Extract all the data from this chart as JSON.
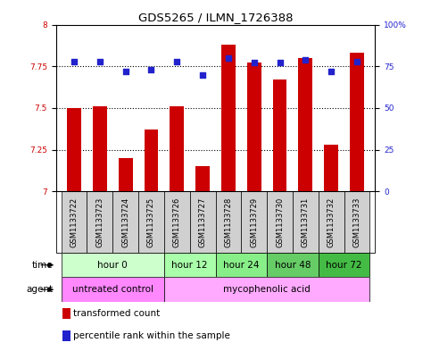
{
  "title": "GDS5265 / ILMN_1726388",
  "samples": [
    "GSM1133722",
    "GSM1133723",
    "GSM1133724",
    "GSM1133725",
    "GSM1133726",
    "GSM1133727",
    "GSM1133728",
    "GSM1133729",
    "GSM1133730",
    "GSM1133731",
    "GSM1133732",
    "GSM1133733"
  ],
  "bar_values": [
    7.5,
    7.51,
    7.2,
    7.37,
    7.51,
    7.15,
    7.88,
    7.77,
    7.67,
    7.8,
    7.28,
    7.83
  ],
  "dot_values": [
    78,
    78,
    72,
    73,
    78,
    70,
    80,
    77,
    77,
    79,
    72,
    78
  ],
  "bar_color": "#cc0000",
  "dot_color": "#2222cc",
  "ylim": [
    7.0,
    8.0
  ],
  "y2lim": [
    0,
    100
  ],
  "yticks": [
    7.0,
    7.25,
    7.5,
    7.75,
    8.0
  ],
  "ytick_labels": [
    "7",
    "7.25",
    "7.5",
    "7.75",
    "8"
  ],
  "y2ticks": [
    0,
    25,
    50,
    75,
    100
  ],
  "y2tick_labels": [
    "0",
    "25",
    "50",
    "75",
    "100%"
  ],
  "hlines": [
    7.25,
    7.5,
    7.75
  ],
  "time_groups": [
    {
      "label": "hour 0",
      "start": 0,
      "end": 4,
      "color": "#ccffcc"
    },
    {
      "label": "hour 12",
      "start": 4,
      "end": 6,
      "color": "#aaffaa"
    },
    {
      "label": "hour 24",
      "start": 6,
      "end": 8,
      "color": "#88ee88"
    },
    {
      "label": "hour 48",
      "start": 8,
      "end": 10,
      "color": "#66cc66"
    },
    {
      "label": "hour 72",
      "start": 10,
      "end": 12,
      "color": "#44bb44"
    }
  ],
  "agent_groups": [
    {
      "label": "untreated control",
      "start": 0,
      "end": 4,
      "color": "#ff88ff"
    },
    {
      "label": "mycophenolic acid",
      "start": 4,
      "end": 12,
      "color": "#ffaaff"
    }
  ],
  "legend_items": [
    {
      "label": "transformed count",
      "color": "#cc0000"
    },
    {
      "label": "percentile rank within the sample",
      "color": "#2222cc"
    }
  ],
  "left_color": "#cc0000",
  "right_color": "#2222cc",
  "bar_width": 0.55,
  "tick_label_fontsize": 6.5,
  "sample_fontsize": 6.0,
  "title_fontsize": 9.5,
  "row_label_fontsize": 7.5,
  "legend_fontsize": 7.5
}
